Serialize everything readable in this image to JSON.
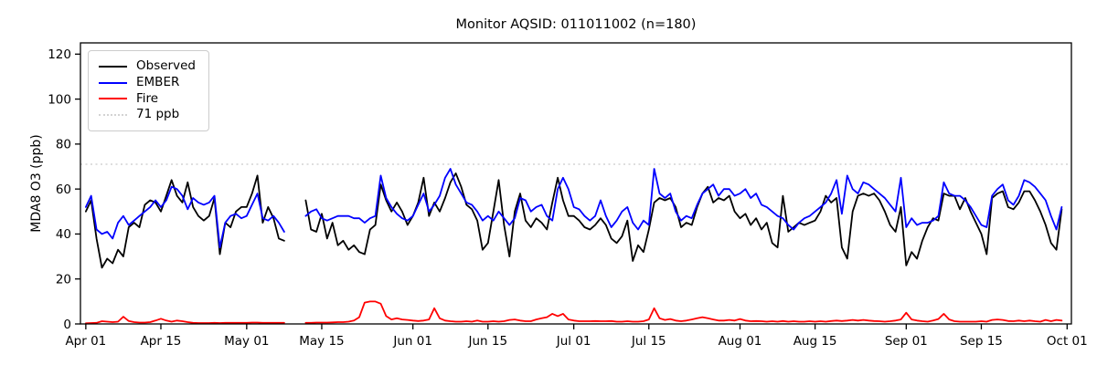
{
  "title": "Monitor AQSID: 011011002 (n=180)",
  "axes": {
    "ylabel": "MDA8 O3 (ppb)",
    "xlabel": "",
    "y_ticks": [
      0,
      20,
      40,
      60,
      80,
      100,
      120
    ],
    "x_ticks": [
      {
        "day": 0,
        "label": "Apr 01"
      },
      {
        "day": 14,
        "label": "Apr 15"
      },
      {
        "day": 30,
        "label": "May 01"
      },
      {
        "day": 44,
        "label": "May 15"
      },
      {
        "day": 61,
        "label": "Jun 01"
      },
      {
        "day": 75,
        "label": "Jun 15"
      },
      {
        "day": 91,
        "label": "Jul 01"
      },
      {
        "day": 105,
        "label": "Jul 15"
      },
      {
        "day": 122,
        "label": "Aug 01"
      },
      {
        "day": 136,
        "label": "Aug 15"
      },
      {
        "day": 153,
        "label": "Sep 01"
      },
      {
        "day": 167,
        "label": "Sep 15"
      },
      {
        "day": 183,
        "label": "Oct 01"
      }
    ]
  },
  "legend": {
    "items": [
      {
        "label": "Observed",
        "color": "#000000",
        "dash": "solid"
      },
      {
        "label": "EMBER",
        "color": "#0000ff",
        "dash": "solid"
      },
      {
        "label": "Fire",
        "color": "#ff0000",
        "dash": "solid"
      },
      {
        "label": "71 ppb",
        "color": "#d3d3d3",
        "dash": "dotted"
      }
    ]
  },
  "chart_data": {
    "type": "line",
    "title": "Monitor AQSID: 011011002 (n=180)",
    "xlabel": "",
    "ylabel": "MDA8 O3 (ppb)",
    "n": 180,
    "x_start_date": "Apr 01",
    "x_end_date": "Oct 01",
    "x_days_total": 183,
    "missing_days": [
      "May 09",
      "May 10",
      "May 11"
    ],
    "ylim": [
      0,
      125
    ],
    "xlim_days": [
      -1,
      183.8
    ],
    "grid": false,
    "legend_position": "upper left",
    "threshold": {
      "value": 71,
      "label": "71 ppb",
      "color": "#d3d3d3",
      "style": "dotted"
    },
    "series": [
      {
        "name": "Observed",
        "color": "#000000",
        "values": [
          50,
          55,
          38,
          25,
          29,
          27,
          33,
          30,
          43,
          45,
          43,
          53,
          55,
          54,
          50,
          57,
          64,
          57,
          54,
          63,
          52,
          48,
          46,
          48,
          56,
          31,
          45,
          43,
          50,
          52,
          52,
          58,
          66,
          45,
          52,
          47,
          38,
          37,
          null,
          null,
          null,
          55,
          42,
          41,
          49,
          38,
          45,
          35,
          37,
          33,
          35,
          32,
          31,
          42,
          44,
          62,
          55,
          50,
          54,
          50,
          44,
          48,
          54,
          65,
          48,
          54,
          50,
          56,
          63,
          67,
          61,
          53,
          51,
          46,
          33,
          36,
          50,
          64,
          44,
          30,
          50,
          58,
          46,
          43,
          47,
          45,
          42,
          54,
          65,
          55,
          48,
          48,
          46,
          43,
          42,
          44,
          47,
          44,
          38,
          36,
          39,
          46,
          28,
          35,
          32,
          42,
          54,
          56,
          55,
          56,
          52,
          43,
          45,
          44,
          52,
          58,
          61,
          54,
          56,
          55,
          57,
          50,
          47,
          49,
          44,
          47,
          42,
          45,
          36,
          34,
          57,
          41,
          43,
          45,
          44,
          45,
          46,
          50,
          57,
          54,
          56,
          34,
          29,
          50,
          57,
          58,
          57,
          58,
          55,
          50,
          44,
          41,
          52,
          26,
          32,
          29,
          37,
          43,
          47,
          46,
          58,
          57,
          57,
          51,
          56,
          50,
          45,
          40,
          31,
          56,
          58,
          59,
          52,
          51,
          54,
          59,
          59,
          55,
          50,
          44,
          36,
          33,
          51
        ]
      },
      {
        "name": "EMBER",
        "color": "#0000ff",
        "values": [
          52,
          57,
          42,
          40,
          41,
          38,
          45,
          48,
          44,
          46,
          48,
          50,
          52,
          55,
          52,
          55,
          61,
          60,
          57,
          51,
          56,
          54,
          53,
          54,
          57,
          34,
          45,
          48,
          49,
          47,
          48,
          53,
          58,
          47,
          46,
          48,
          45,
          41,
          null,
          null,
          null,
          48,
          50,
          51,
          47,
          46,
          47,
          48,
          48,
          48,
          47,
          47,
          45,
          47,
          48,
          66,
          56,
          52,
          49,
          47,
          46,
          48,
          53,
          58,
          50,
          53,
          57,
          65,
          69,
          62,
          58,
          54,
          53,
          50,
          46,
          48,
          46,
          50,
          47,
          44,
          47,
          56,
          55,
          50,
          52,
          53,
          48,
          46,
          60,
          65,
          60,
          52,
          51,
          48,
          46,
          48,
          55,
          48,
          43,
          46,
          50,
          52,
          45,
          42,
          46,
          44,
          69,
          58,
          56,
          58,
          50,
          46,
          48,
          47,
          53,
          58,
          60,
          62,
          57,
          60,
          60,
          57,
          58,
          60,
          56,
          58,
          53,
          52,
          50,
          48,
          47,
          44,
          42,
          45,
          47,
          48,
          50,
          52,
          54,
          58,
          64,
          49,
          66,
          60,
          58,
          63,
          62,
          60,
          58,
          56,
          53,
          50,
          65,
          43,
          47,
          44,
          45,
          45,
          46,
          48,
          63,
          58,
          57,
          57,
          55,
          52,
          48,
          44,
          43,
          57,
          60,
          62,
          55,
          53,
          57,
          64,
          63,
          61,
          58,
          55,
          48,
          42,
          52
        ]
      },
      {
        "name": "Fire",
        "color": "#ff0000",
        "values": [
          0.3,
          0.4,
          0.5,
          1.2,
          1.0,
          0.8,
          1.0,
          3.2,
          1.3,
          0.8,
          0.6,
          0.6,
          0.8,
          1.5,
          2.3,
          1.5,
          1.0,
          1.5,
          1.2,
          0.8,
          0.5,
          0.4,
          0.4,
          0.4,
          0.5,
          0.4,
          0.5,
          0.5,
          0.5,
          0.5,
          0.5,
          0.6,
          0.6,
          0.5,
          0.5,
          0.5,
          0.5,
          0.5,
          null,
          null,
          null,
          0.5,
          0.5,
          0.6,
          0.6,
          0.6,
          0.7,
          0.8,
          0.8,
          1.0,
          1.5,
          3.0,
          9.5,
          10.0,
          10.0,
          9.0,
          3.5,
          2.0,
          2.5,
          2.0,
          1.8,
          1.5,
          1.3,
          1.5,
          2.0,
          7.0,
          2.5,
          1.5,
          1.2,
          1.0,
          1.0,
          1.2,
          1.0,
          1.5,
          1.0,
          1.0,
          1.2,
          1.0,
          1.2,
          1.8,
          2.0,
          1.5,
          1.2,
          1.2,
          2.0,
          2.5,
          3.0,
          4.5,
          3.5,
          4.5,
          2.0,
          1.5,
          1.2,
          1.2,
          1.2,
          1.3,
          1.2,
          1.2,
          1.3,
          1.0,
          1.0,
          1.2,
          1.0,
          1.0,
          1.2,
          2.0,
          7.0,
          2.5,
          1.8,
          2.2,
          1.5,
          1.2,
          1.5,
          2.0,
          2.5,
          3.0,
          2.5,
          2.0,
          1.5,
          1.5,
          1.8,
          1.5,
          2.2,
          1.5,
          1.2,
          1.3,
          1.2,
          1.0,
          1.2,
          1.0,
          1.3,
          1.0,
          1.2,
          1.0,
          1.0,
          1.2,
          1.0,
          1.2,
          1.0,
          1.3,
          1.5,
          1.3,
          1.5,
          1.8,
          1.5,
          1.8,
          1.5,
          1.3,
          1.2,
          1.0,
          1.2,
          1.5,
          2.0,
          5.0,
          2.0,
          1.5,
          1.2,
          1.0,
          1.5,
          2.2,
          4.5,
          2.0,
          1.2,
          1.0,
          1.0,
          1.0,
          1.0,
          1.2,
          1.0,
          1.8,
          2.0,
          1.8,
          1.3,
          1.2,
          1.5,
          1.2,
          1.5,
          1.2,
          1.0,
          1.8,
          1.2,
          1.8,
          1.5
        ]
      }
    ]
  }
}
